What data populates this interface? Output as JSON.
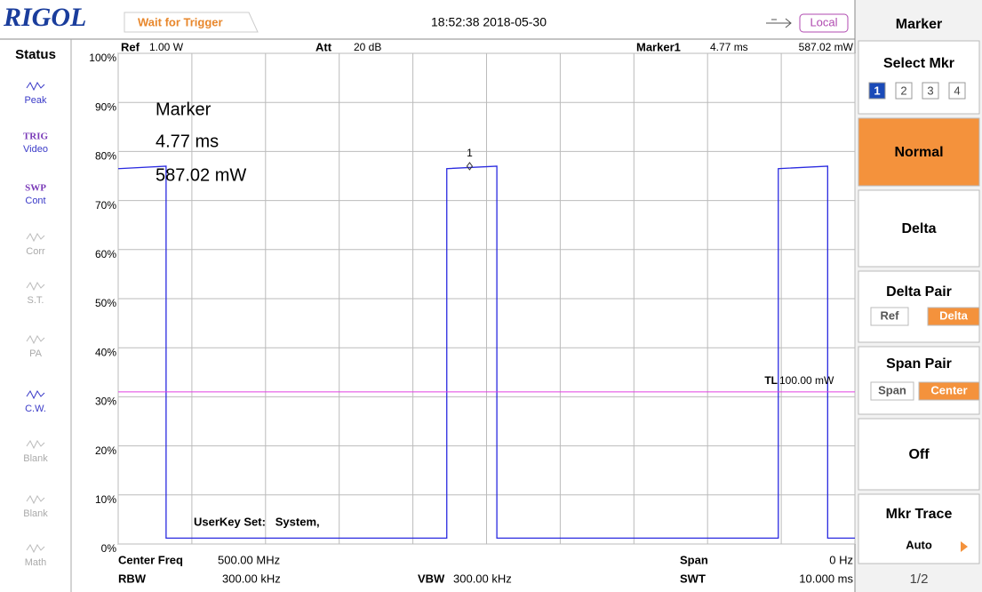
{
  "header": {
    "logo": "RIGOL",
    "status": "Wait for Trigger",
    "datetime": "18:52:38 2018-05-30",
    "mode": "Local"
  },
  "status_panel": {
    "title": "Status",
    "items": [
      {
        "lines": [
          "Peak"
        ],
        "active": true
      },
      {
        "lines": [
          "TRIG",
          "Video"
        ],
        "active": true
      },
      {
        "lines": [
          "SWP",
          "Cont"
        ],
        "active": true
      },
      {
        "lines": [
          "Corr"
        ],
        "active": false
      },
      {
        "lines": [
          "S.T."
        ],
        "active": false
      },
      {
        "lines": [
          "PA"
        ],
        "active": false
      },
      {
        "lines": [
          "C.W."
        ],
        "active": true
      },
      {
        "lines": [
          "Blank"
        ],
        "active": false
      },
      {
        "lines": [
          "Blank"
        ],
        "active": false
      },
      {
        "lines": [
          "Math"
        ],
        "active": false
      }
    ]
  },
  "screen": {
    "ref_label": "Ref",
    "ref": "1.00 W",
    "att_label": "Att",
    "att": "20 dB",
    "marker_label": "Marker1",
    "marker_time": "4.77 ms",
    "marker_value": "587.02 mW",
    "marker_box": [
      "Marker",
      "4.77 ms",
      "587.02 mW"
    ],
    "userkey": "UserKey Set:   System,",
    "tl_label": "TL",
    "tl_value": "100.00 mW",
    "center_label": "Center Freq",
    "center": "500.00 MHz",
    "span_label": "Span",
    "span": "0 Hz",
    "rbw_label": "RBW",
    "rbw": "300.00 kHz",
    "vbw_label": "VBW",
    "vbw": "300.00 kHz",
    "swt_label": "SWT",
    "swt": "10.000 ms"
  },
  "chart_data": {
    "type": "line",
    "xlim": [
      0,
      10
    ],
    "xticks": [
      0,
      1,
      2,
      3,
      4,
      5,
      6,
      7,
      8,
      9,
      10
    ],
    "ylim": [
      0,
      100
    ],
    "yticks": [
      {
        "value": 0,
        "label": "0%"
      },
      {
        "value": 10,
        "label": "10%"
      },
      {
        "value": 20,
        "label": "20%"
      },
      {
        "value": 30,
        "label": "30%"
      },
      {
        "value": 40,
        "label": "40%"
      },
      {
        "value": 50,
        "label": "50%"
      },
      {
        "value": 60,
        "label": "60%"
      },
      {
        "value": 70,
        "label": "70%"
      },
      {
        "value": 80,
        "label": "80%"
      },
      {
        "value": 90,
        "label": "90%"
      },
      {
        "value": 100,
        "label": "100%"
      }
    ],
    "grid": true,
    "x": [
      0,
      0.65,
      0.65,
      4.46,
      4.46,
      5.14,
      5.14,
      8.96,
      8.96,
      9.63,
      9.63,
      10
    ],
    "values": [
      76.5,
      77,
      1.2,
      1.2,
      76.5,
      77,
      1.2,
      1.2,
      76.5,
      77,
      1.2,
      1.2
    ],
    "color": "#2a2ae0",
    "threshold": 31,
    "threshold_color": "#e040e0",
    "marker_x": 4.77,
    "marker_y": 77,
    "marker_name": "1"
  },
  "menu": {
    "title": "Marker",
    "select_label": "Select Mkr",
    "select_options": [
      "1",
      "2",
      "3",
      "4"
    ],
    "normal": "Normal",
    "delta": "Delta",
    "delta_pair": "Delta Pair",
    "delta_pair_options": [
      "Ref",
      "Delta"
    ],
    "span_pair": "Span Pair",
    "span_pair_options": [
      "Span",
      "Center"
    ],
    "off": "Off",
    "mkr_trace": "Mkr Trace",
    "mkr_trace_value": "Auto",
    "page": "1/2"
  }
}
